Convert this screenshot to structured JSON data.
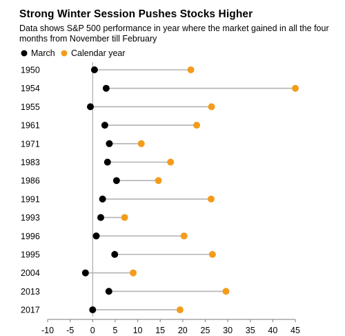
{
  "title": "Strong Winter Session Pushes Stocks Higher",
  "subtitle": "Data shows S&P 500 performance in year where the market gained in all the four months from November till February",
  "colors": {
    "march": "#000000",
    "calendar": "#f39c1c",
    "connector": "#b3b3b3",
    "zero_line": "#9a9a9a",
    "axis": "#7a7a7a"
  },
  "chart_data": {
    "type": "dumbbell",
    "title": "Strong Winter Session Pushes Stocks Higher",
    "subtitle": "Data shows S&P 500 performance in year where the market gained in all the four months from November till February",
    "xlabel": "",
    "ylabel": "",
    "xlim": [
      -10,
      45
    ],
    "xticks": [
      -10,
      -5,
      0,
      5,
      10,
      15,
      20,
      25,
      30,
      35,
      40,
      45
    ],
    "grid": false,
    "legend_position": "top-left",
    "categories": [
      "1950",
      "1954",
      "1955",
      "1961",
      "1971",
      "1983",
      "1986",
      "1991",
      "1993",
      "1996",
      "1995",
      "2004",
      "2013",
      "2017"
    ],
    "series": [
      {
        "name": "March",
        "color": "#000000",
        "values": [
          0.4,
          3.0,
          -0.5,
          2.7,
          3.7,
          3.3,
          5.3,
          2.2,
          1.8,
          0.8,
          4.9,
          -1.6,
          3.6,
          0.0
        ]
      },
      {
        "name": "Calendar year",
        "color": "#f39c1c",
        "values": [
          21.8,
          45.0,
          26.4,
          23.1,
          10.8,
          17.3,
          14.6,
          26.3,
          7.1,
          20.3,
          26.6,
          9.0,
          29.6,
          19.4
        ]
      }
    ]
  }
}
